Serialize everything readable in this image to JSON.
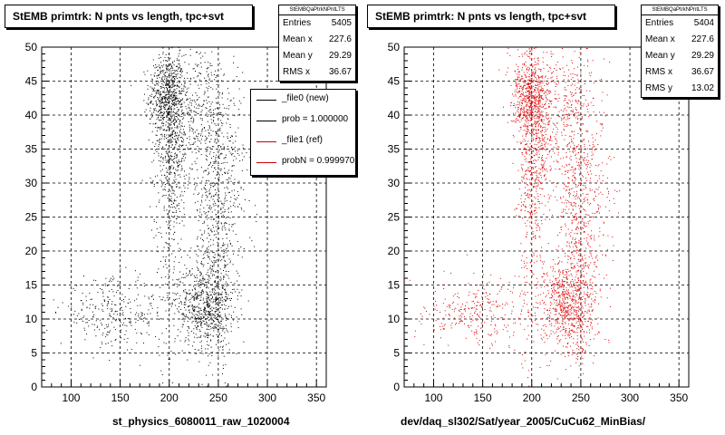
{
  "footer_text": "",
  "charts": [
    {
      "id": "left",
      "title": "StEMB primtrk: N pnts vs length, tpc+svt",
      "stats": {
        "header": "StEMBQaPtrkNPntLTS",
        "rows": [
          {
            "label": "Entries",
            "value": "5405"
          },
          {
            "label": "Mean x",
            "value": "227.6"
          },
          {
            "label": "Mean y",
            "value": "29.29"
          },
          {
            "label": "RMS x",
            "value": "36.67"
          }
        ]
      },
      "legend": [
        {
          "label": "_file0 (new)",
          "color": "#000000"
        },
        {
          "label": "prob = 1.000000",
          "color": "#000000"
        },
        {
          "label": "_file1 (ref)",
          "color": "#cc0000"
        },
        {
          "label": "probN = 0.999970",
          "color": "#cc0000"
        }
      ],
      "xlabel": "st_physics_6080011_raw_1020004"
    },
    {
      "id": "right",
      "title": "StEMB primtrk: N pnts vs length, tpc+svt",
      "stats": {
        "header": "StEMBQaPtrkNPntLTS",
        "rows": [
          {
            "label": "Entries",
            "value": "5404"
          },
          {
            "label": "Mean x",
            "value": "227.6"
          },
          {
            "label": "Mean y",
            "value": "29.29"
          },
          {
            "label": "RMS x",
            "value": "36.67"
          },
          {
            "label": "RMS y",
            "value": "13.02"
          }
        ]
      },
      "legend": [],
      "xlabel": "dev/daq_sl302/Sat/year_2005/CuCu62_MinBias/"
    }
  ],
  "chart_data": [
    {
      "type": "scatter",
      "series": [
        {
          "name": "_file0 (new)",
          "color": "#000000",
          "n": 5405
        }
      ],
      "xlim": [
        70,
        360
      ],
      "ylim": [
        0,
        50
      ],
      "xticks": [
        100,
        150,
        200,
        250,
        300,
        350
      ],
      "yticks": [
        0,
        5,
        10,
        15,
        20,
        25,
        30,
        35,
        40,
        45,
        50
      ],
      "grid": true,
      "clusters": [
        {
          "x": 197,
          "y": 43,
          "sx": 9,
          "sy": 3,
          "w": 0.16
        },
        {
          "x": 203,
          "y": 36,
          "sx": 9,
          "sy": 6,
          "w": 0.14
        },
        {
          "x": 230,
          "y": 41,
          "sx": 18,
          "sy": 5,
          "w": 0.12
        },
        {
          "x": 232,
          "y": 12,
          "sx": 12,
          "sy": 3,
          "w": 0.15
        },
        {
          "x": 245,
          "y": 24,
          "sx": 10,
          "sy": 9,
          "w": 0.14
        },
        {
          "x": 250,
          "y": 12,
          "sx": 10,
          "sy": 4,
          "w": 0.07
        },
        {
          "x": 262,
          "y": 30,
          "sx": 12,
          "sy": 8,
          "w": 0.06
        },
        {
          "x": 145,
          "y": 11,
          "sx": 28,
          "sy": 2.5,
          "w": 0.09
        },
        {
          "x": 200,
          "y": 25,
          "sx": 8,
          "sy": 12,
          "w": 0.07
        }
      ]
    },
    {
      "type": "scatter",
      "series": [
        {
          "name": "_file1 (ref)",
          "color": "#dd0000",
          "n": 5404
        }
      ],
      "xlim": [
        70,
        360
      ],
      "ylim": [
        0,
        50
      ],
      "xticks": [
        100,
        150,
        200,
        250,
        300,
        350
      ],
      "yticks": [
        0,
        5,
        10,
        15,
        20,
        25,
        30,
        35,
        40,
        45,
        50
      ],
      "grid": true,
      "clusters": [
        {
          "x": 197,
          "y": 43,
          "sx": 9,
          "sy": 3,
          "w": 0.16
        },
        {
          "x": 203,
          "y": 36,
          "sx": 9,
          "sy": 6,
          "w": 0.14
        },
        {
          "x": 230,
          "y": 41,
          "sx": 18,
          "sy": 5,
          "w": 0.12
        },
        {
          "x": 232,
          "y": 12,
          "sx": 12,
          "sy": 3,
          "w": 0.15
        },
        {
          "x": 245,
          "y": 24,
          "sx": 10,
          "sy": 9,
          "w": 0.14
        },
        {
          "x": 250,
          "y": 12,
          "sx": 10,
          "sy": 4,
          "w": 0.07
        },
        {
          "x": 262,
          "y": 30,
          "sx": 12,
          "sy": 8,
          "w": 0.06
        },
        {
          "x": 145,
          "y": 11,
          "sx": 28,
          "sy": 2.5,
          "w": 0.09
        },
        {
          "x": 200,
          "y": 25,
          "sx": 8,
          "sy": 12,
          "w": 0.07
        }
      ]
    }
  ]
}
